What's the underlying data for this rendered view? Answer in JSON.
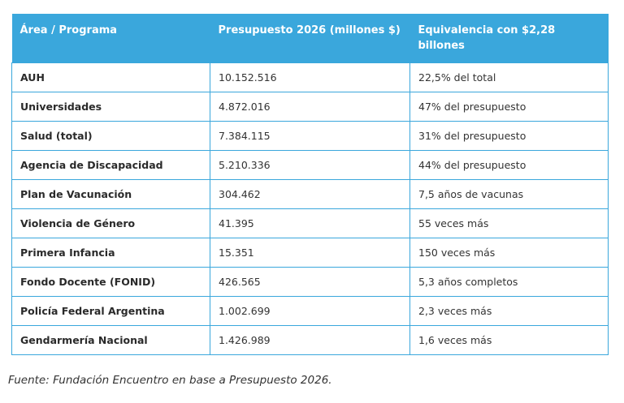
{
  "table": {
    "headers": [
      "Área / Programa",
      "Presupuesto 2026 (millones $)",
      "Equivalencia con $2,28 billones"
    ],
    "rows": [
      {
        "area": "AUH",
        "budget": "10.152.516",
        "equivalence": "22,5% del total"
      },
      {
        "area": "Universidades",
        "budget": "4.872.016",
        "equivalence": "47% del presupuesto"
      },
      {
        "area": "Salud (total)",
        "budget": "7.384.115",
        "equivalence": "31% del presupuesto"
      },
      {
        "area": "Agencia de Discapacidad",
        "budget": "5.210.336",
        "equivalence": "44% del presupuesto"
      },
      {
        "area": "Plan de Vacunación",
        "budget": "304.462",
        "equivalence": "7,5 años de vacunas"
      },
      {
        "area": "Violencia de Género",
        "budget": "41.395",
        "equivalence": "55 veces más"
      },
      {
        "area": "Primera Infancia",
        "budget": "15.351",
        "equivalence": "150 veces más"
      },
      {
        "area": "Fondo Docente (FONID)",
        "budget": "426.565",
        "equivalence": "5,3 años completos"
      },
      {
        "area": "Policía Federal Argentina",
        "budget": "1.002.699",
        "equivalence": "2,3 veces más"
      },
      {
        "area": "Gendarmería Nacional",
        "budget": "1.426.989",
        "equivalence": "1,6 veces más"
      }
    ]
  },
  "colors": {
    "header_bg": "#3aa7dc",
    "header_text": "#ffffff",
    "border": "#3aa7dc"
  },
  "source": "Fuente: Fundación Encuentro en base a Presupuesto 2026."
}
